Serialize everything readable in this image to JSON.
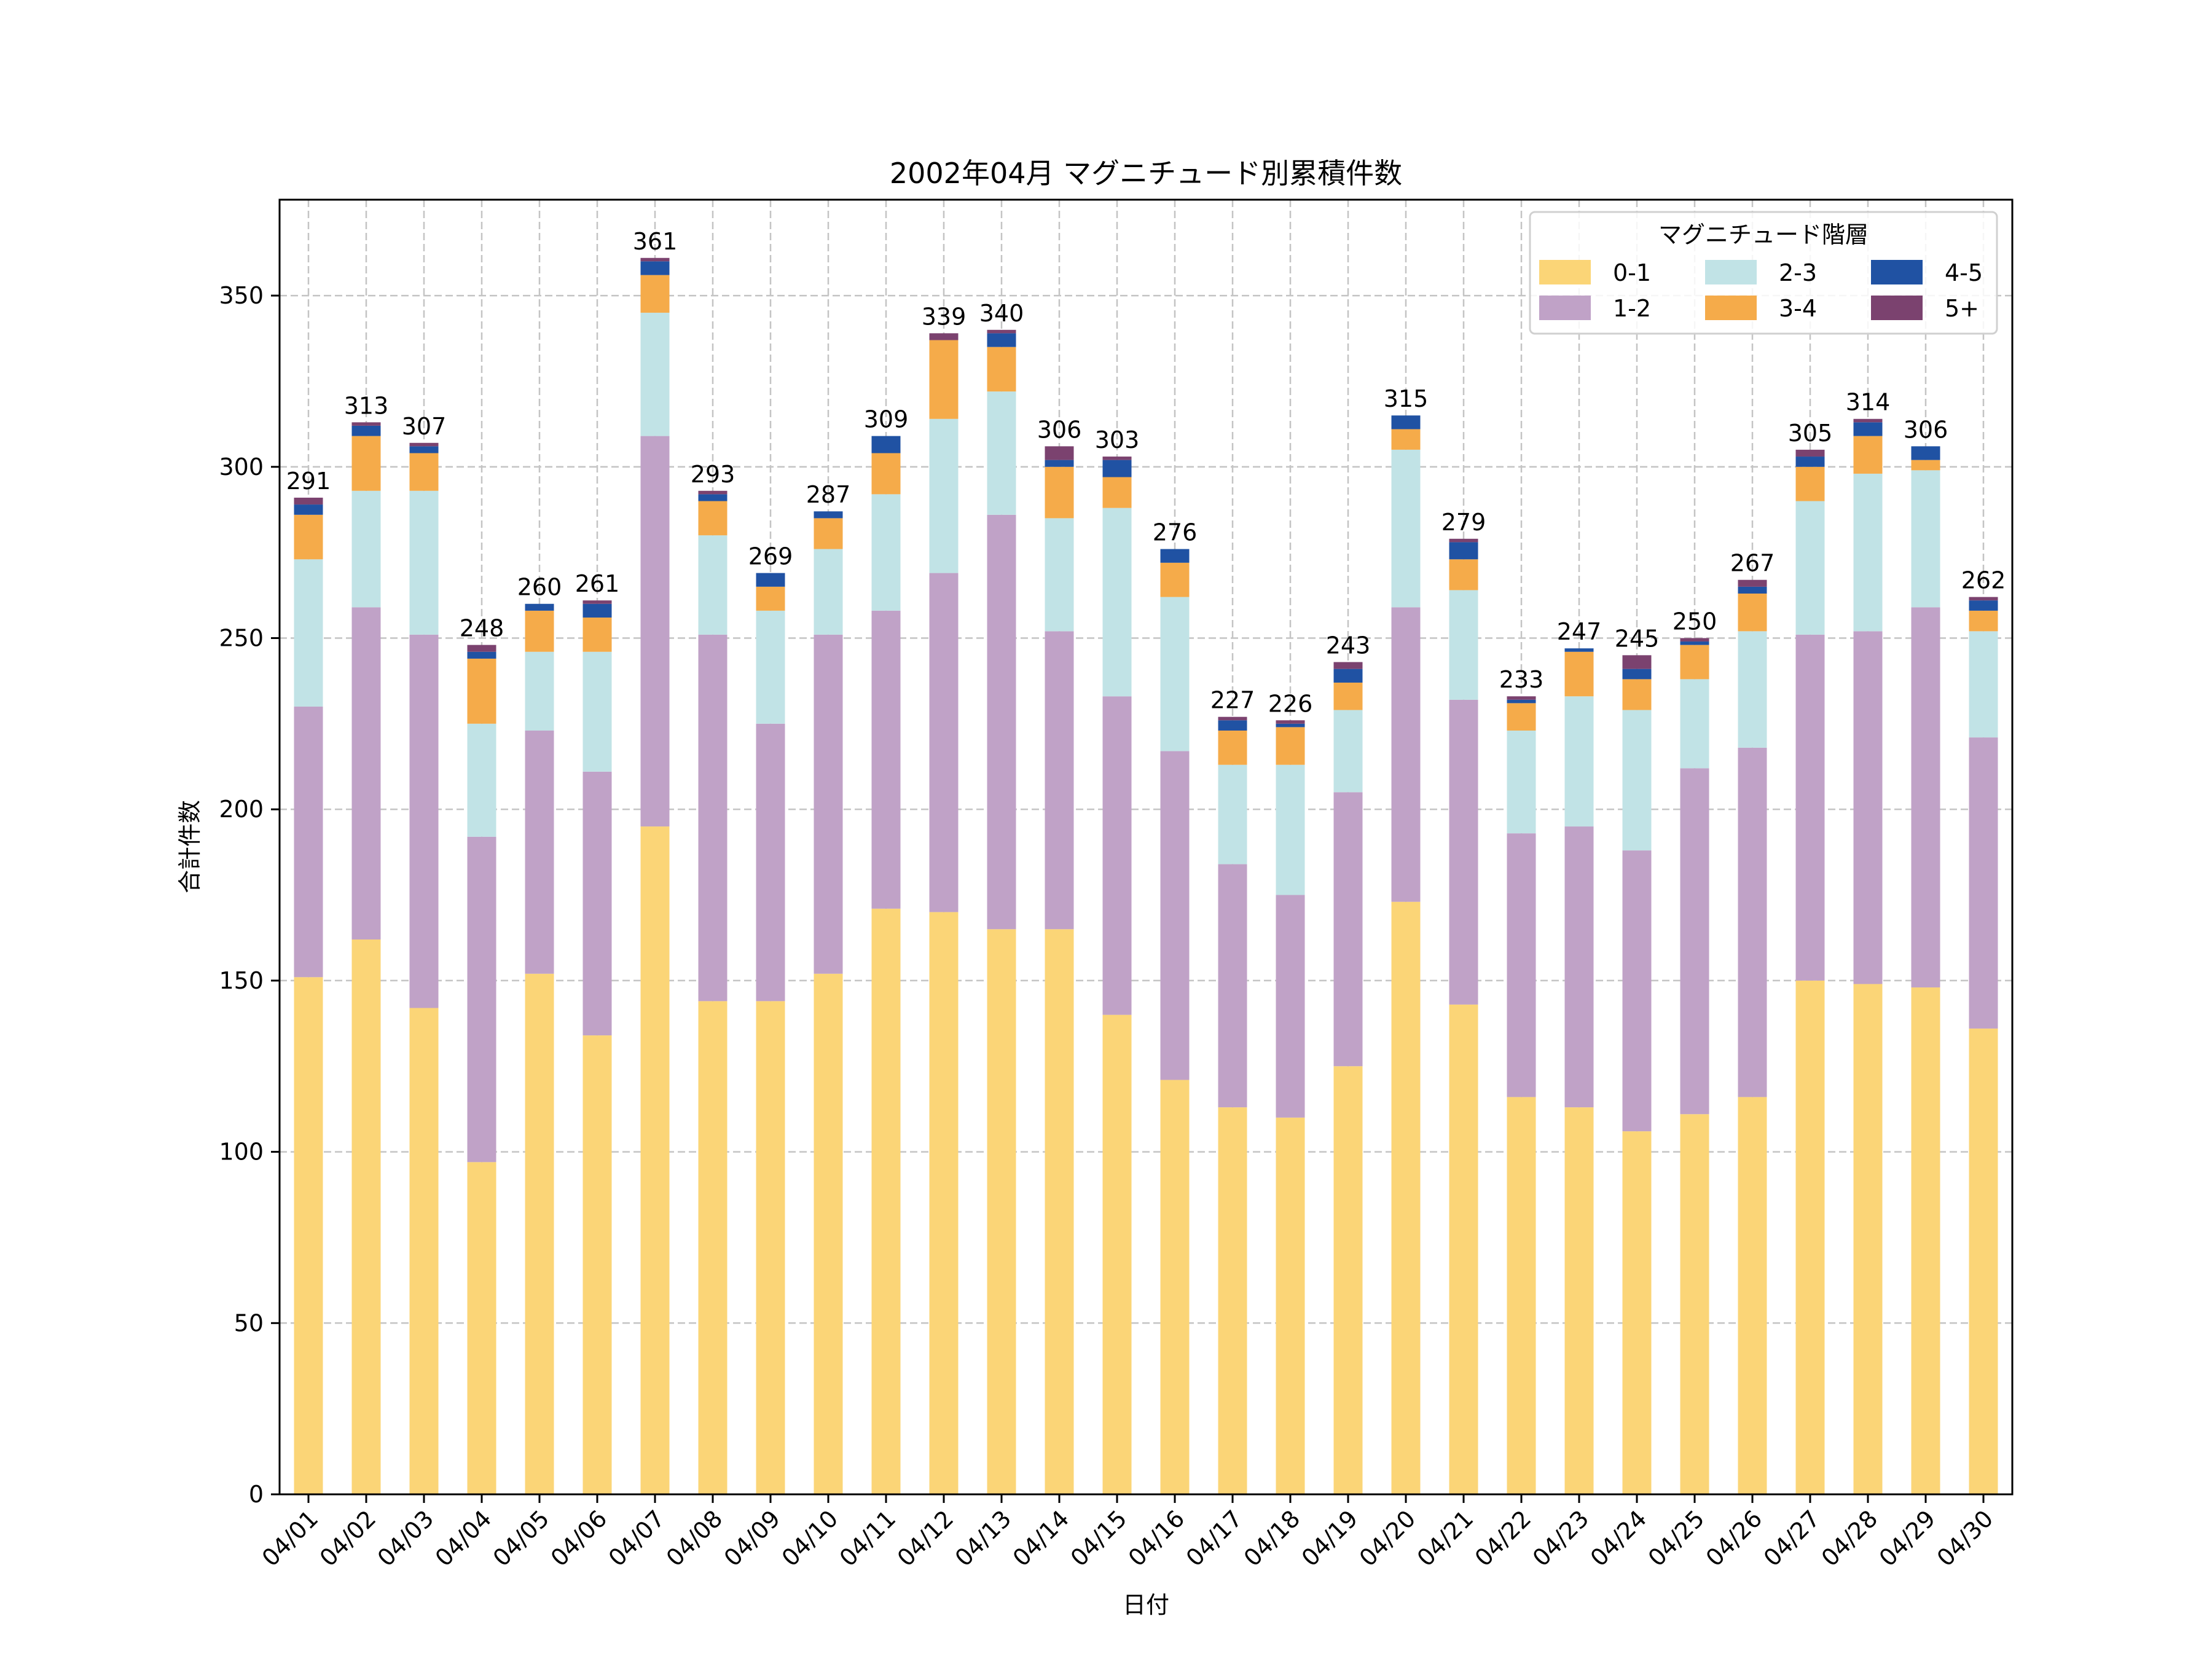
{
  "chart_data": {
    "type": "bar",
    "stacked": true,
    "title": "2002年04月 マグニチュード別累積件数",
    "xlabel": "日付",
    "ylabel": "合計件数",
    "ylim": [
      0,
      378
    ],
    "yticks": [
      0,
      50,
      100,
      150,
      200,
      250,
      300,
      350
    ],
    "grid": true,
    "legend": {
      "title": "マグニチュード階層",
      "position": "top-right",
      "columns": 3
    },
    "categories": [
      "04/01",
      "04/02",
      "04/03",
      "04/04",
      "04/05",
      "04/06",
      "04/07",
      "04/08",
      "04/09",
      "04/10",
      "04/11",
      "04/12",
      "04/13",
      "04/14",
      "04/15",
      "04/16",
      "04/17",
      "04/18",
      "04/19",
      "04/20",
      "04/21",
      "04/22",
      "04/23",
      "04/24",
      "04/25",
      "04/26",
      "04/27",
      "04/28",
      "04/29",
      "04/30"
    ],
    "series": [
      {
        "name": "0-1",
        "color": "#fbd577",
        "values": [
          151,
          162,
          142,
          97,
          152,
          134,
          195,
          144,
          144,
          152,
          171,
          170,
          165,
          165,
          140,
          121,
          113,
          110,
          125,
          173,
          143,
          116,
          113,
          106,
          111,
          116,
          150,
          149,
          148,
          136
        ]
      },
      {
        "name": "1-2",
        "color": "#c0a2c7",
        "values": [
          79,
          97,
          109,
          95,
          71,
          77,
          114,
          107,
          81,
          99,
          87,
          99,
          121,
          87,
          93,
          96,
          71,
          65,
          80,
          86,
          89,
          77,
          82,
          82,
          101,
          102,
          101,
          103,
          111,
          85
        ]
      },
      {
        "name": "2-3",
        "color": "#c1e3e6",
        "values": [
          43,
          34,
          42,
          33,
          23,
          35,
          36,
          29,
          33,
          25,
          34,
          45,
          36,
          33,
          55,
          45,
          29,
          38,
          24,
          46,
          32,
          30,
          38,
          41,
          26,
          34,
          39,
          46,
          40,
          31
        ]
      },
      {
        "name": "3-4",
        "color": "#f5ab4a",
        "values": [
          13,
          16,
          11,
          19,
          12,
          10,
          11,
          10,
          7,
          9,
          12,
          23,
          13,
          15,
          9,
          10,
          10,
          11,
          8,
          6,
          9,
          8,
          13,
          9,
          10,
          11,
          10,
          11,
          3,
          6
        ]
      },
      {
        "name": "4-5",
        "color": "#2052a3",
        "values": [
          3,
          3,
          2,
          2,
          2,
          4,
          4,
          2,
          4,
          2,
          5,
          0,
          4,
          2,
          5,
          4,
          3,
          1,
          4,
          4,
          5,
          1,
          1,
          3,
          1,
          2,
          3,
          4,
          4,
          3
        ]
      },
      {
        "name": "5+",
        "color": "#7b426f",
        "values": [
          2,
          1,
          1,
          2,
          0,
          1,
          1,
          1,
          0,
          0,
          0,
          2,
          1,
          4,
          1,
          0,
          1,
          1,
          2,
          0,
          1,
          1,
          0,
          4,
          1,
          2,
          2,
          1,
          0,
          1
        ]
      }
    ],
    "totals": [
      291,
      313,
      307,
      248,
      260,
      261,
      361,
      293,
      269,
      287,
      309,
      339,
      340,
      306,
      303,
      276,
      227,
      226,
      243,
      315,
      279,
      233,
      247,
      245,
      250,
      267,
      305,
      314,
      306,
      262
    ]
  }
}
